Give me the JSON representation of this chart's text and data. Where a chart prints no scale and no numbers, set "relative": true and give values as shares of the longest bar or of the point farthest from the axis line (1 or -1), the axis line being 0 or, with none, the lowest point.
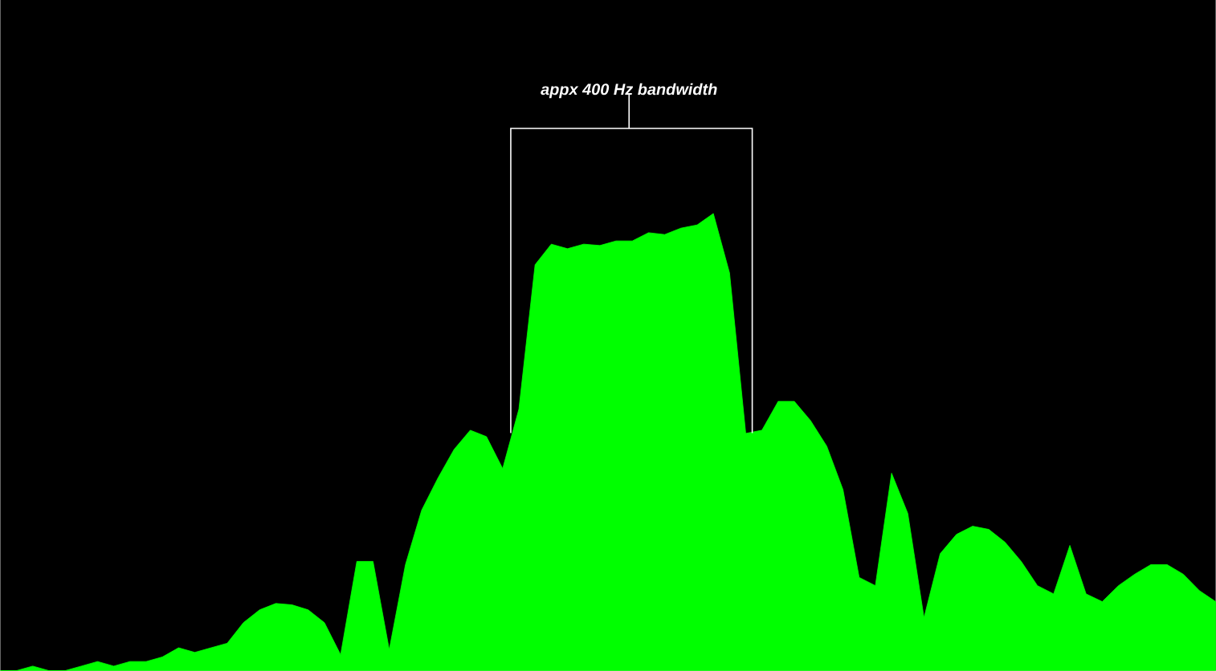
{
  "chart_data": {
    "type": "area",
    "relative": true,
    "color": "#00ff00",
    "annotations": [
      "appx 400 Hz bandwidth"
    ],
    "categories": [
      null,
      null,
      null,
      null,
      null,
      null,
      null,
      null,
      null,
      null,
      null,
      null,
      null,
      null,
      null,
      null,
      null,
      null,
      null,
      null,
      null,
      null,
      null,
      null,
      null,
      null,
      null,
      null,
      null,
      null,
      null,
      null,
      null,
      null,
      null,
      null,
      null,
      null,
      null,
      null,
      null,
      null,
      null,
      null,
      null,
      null,
      null,
      null,
      null,
      null,
      null,
      null,
      null,
      null,
      null,
      null,
      null,
      null,
      null,
      null,
      null,
      null,
      null,
      null,
      null,
      null,
      null,
      null,
      null,
      null,
      null,
      null,
      null,
      null,
      null,
      null
    ],
    "values": [
      0,
      0,
      0.01,
      0,
      0,
      0.01,
      0.02,
      0.01,
      0.02,
      0.02,
      0.03,
      0.05,
      0.04,
      0.05,
      0.06,
      0.105,
      0.133,
      0.147,
      0.144,
      0.133,
      0.105,
      0.035,
      0.239,
      0.239,
      0.046,
      0.232,
      0.351,
      0.421,
      0.484,
      0.526,
      0.512,
      0.442,
      0.572,
      0.888,
      0.933,
      0.923,
      0.933,
      0.93,
      0.94,
      0.94,
      0.958,
      0.954,
      0.968,
      0.975,
      1,
      0.87,
      0.519,
      0.526,
      0.589,
      0.589,
      0.547,
      0.491,
      0.396,
      0.204,
      0.186,
      0.432,
      0.344,
      0.116,
      0.256,
      0.298,
      0.316,
      0.309,
      0.281,
      0.239,
      0.186,
      0.168,
      0.274,
      0.168,
      0.151,
      0.186,
      0.211,
      0.232,
      0.232,
      0.211,
      0.175,
      0.151
    ]
  }
}
